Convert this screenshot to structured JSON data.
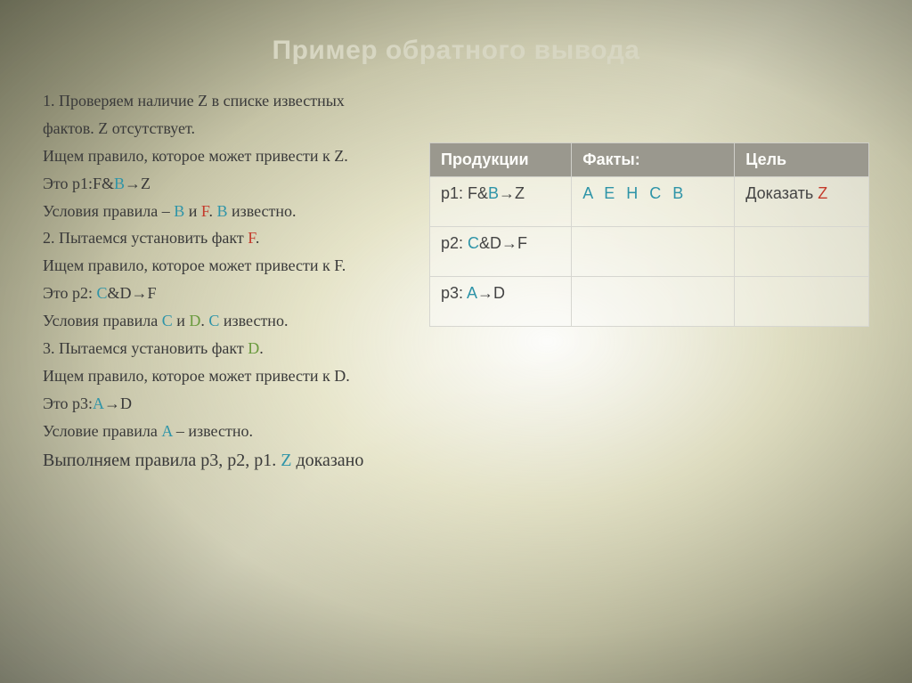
{
  "title": "Пример обратного вывода",
  "lines": {
    "l1a": "1. Проверяем наличие Z в списке известных",
    "l1b": "фактов. Z отсутствует.",
    "l2a": "Ищем правило, которое может привести к Z.",
    "l2b_pre": "Это p1:F&",
    "l2b_B": "B",
    "l2b_arrow": "→",
    "l2b_post": "Z",
    "l3_pre": "Условия правила – ",
    "l3_B1": "B",
    "l3_mid1": " и ",
    "l3_F": "F",
    "l3_mid2": ". ",
    "l3_B2": "B",
    "l3_post": " известно.",
    "l4_pre": "2. Пытаемся установить факт ",
    "l4_F": "F",
    "l4_post": ".",
    "l5a": "Ищем правило, которое может привести к F.",
    "l5b_pre": "Это p2: ",
    "l5b_C": "C",
    "l5b_mid": "&D",
    "l5b_arrow": "→",
    "l5b_post": "F",
    "l6_pre": "Условия правила ",
    "l6_C1": "C",
    "l6_mid1": " и ",
    "l6_D": "D",
    "l6_mid2": ". ",
    "l6_C2": "C",
    "l6_post": " известно.",
    "l7_pre": "3. Пытаемся установить факт ",
    "l7_D": "D",
    "l7_post": ".",
    "l8a": "Ищем правило, которое может привести к D.",
    "l8b_pre": "Это p3:",
    "l8b_A": "A",
    "l8b_arrow": "→",
    "l8b_post": "D",
    "l9_pre": "Условие правила ",
    "l9_A": "A",
    "l9_post": " – известно.",
    "l10_pre": "Выполняем правила p3, p2, p1. ",
    "l10_Z": "Z",
    "l10_post": " доказано"
  },
  "table": {
    "headers": {
      "c1": "Продукции",
      "c2": "Факты:",
      "c3": "Цель"
    },
    "row1": {
      "c1_pre": "p1: F&",
      "c1_B": "B",
      "c1_arrow": "→",
      "c1_post": "Z",
      "c2": "A  E  H C  B",
      "c3_pre": "Доказать ",
      "c3_Z": "Z"
    },
    "row2": {
      "c1_pre": "p2: ",
      "c1_C": "C",
      "c1_mid": "&D",
      "c1_arrow": "→",
      "c1_post": "F"
    },
    "row3": {
      "c1_pre": "p3: ",
      "c1_A": "A",
      "c1_arrow": "→",
      "c1_post": "D"
    }
  },
  "colors": {
    "blue": "#2e94a8",
    "red": "#c43a2b",
    "green": "#6a9a3e",
    "title": "#d7d6c2",
    "header_bg": "#9a988e"
  }
}
